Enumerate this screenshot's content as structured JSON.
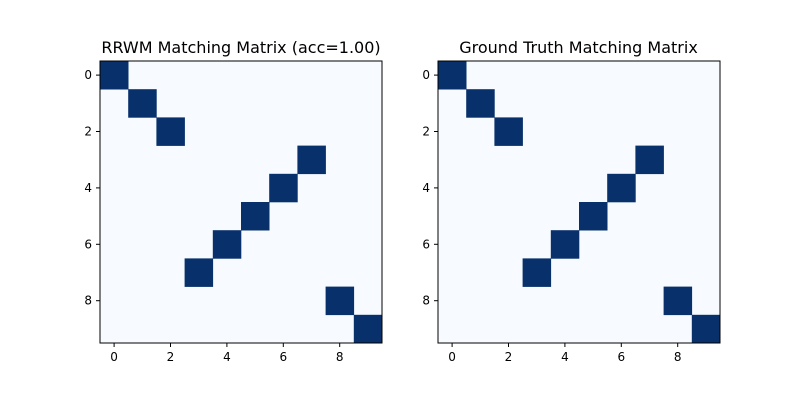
{
  "colors": {
    "background": "#f7fbff",
    "match": "#08306b",
    "axis": "#000000"
  },
  "chart_data": [
    {
      "type": "heatmap",
      "title": "RRWM Matching Matrix (acc=1.00)",
      "rows": 10,
      "cols": 10,
      "matches": [
        [
          0,
          0
        ],
        [
          1,
          1
        ],
        [
          2,
          2
        ],
        [
          3,
          7
        ],
        [
          4,
          6
        ],
        [
          5,
          5
        ],
        [
          6,
          4
        ],
        [
          7,
          3
        ],
        [
          8,
          8
        ],
        [
          9,
          9
        ]
      ],
      "xticks": [
        0,
        2,
        4,
        6,
        8
      ],
      "yticks": [
        0,
        2,
        4,
        6,
        8
      ],
      "xlim": [
        -0.5,
        9.5
      ],
      "ylim": [
        9.5,
        -0.5
      ],
      "colormap": "Blues",
      "grid": false
    },
    {
      "type": "heatmap",
      "title": "Ground Truth Matching Matrix",
      "rows": 10,
      "cols": 10,
      "matches": [
        [
          0,
          0
        ],
        [
          1,
          1
        ],
        [
          2,
          2
        ],
        [
          3,
          7
        ],
        [
          4,
          6
        ],
        [
          5,
          5
        ],
        [
          6,
          4
        ],
        [
          7,
          3
        ],
        [
          8,
          8
        ],
        [
          9,
          9
        ]
      ],
      "xticks": [
        0,
        2,
        4,
        6,
        8
      ],
      "yticks": [
        0,
        2,
        4,
        6,
        8
      ],
      "xlim": [
        -0.5,
        9.5
      ],
      "ylim": [
        9.5,
        -0.5
      ],
      "colormap": "Blues",
      "grid": false
    }
  ]
}
